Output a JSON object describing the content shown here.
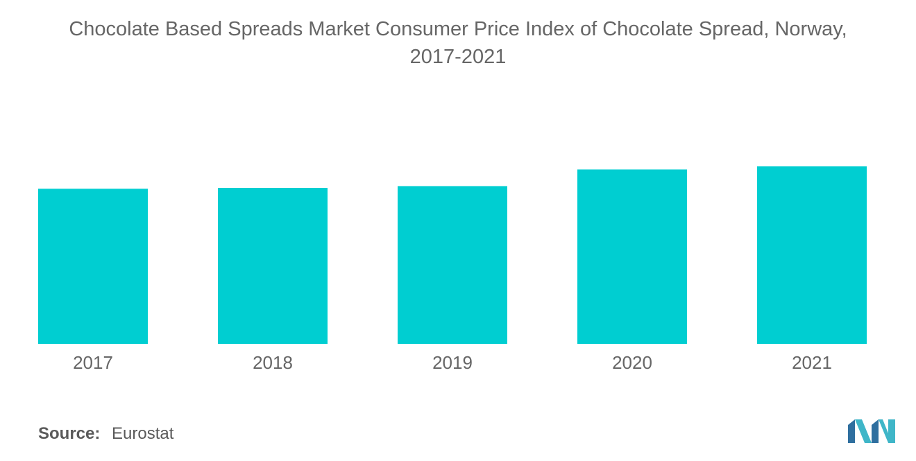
{
  "title_line1": "Chocolate Based Spreads Market Consumer Price Index of Chocolate Spread, Norway,",
  "title_line2": "2017-2021",
  "source": {
    "label": "Source:",
    "value": "Eurostat"
  },
  "colors": {
    "bar": "#00CED1",
    "text": "#666666"
  },
  "chart_data": {
    "type": "bar",
    "title": "Chocolate Based Spreads Market Consumer Price Index of Chocolate Spread, Norway, 2017-2021",
    "categories": [
      "2017",
      "2018",
      "2019",
      "2020",
      "2021"
    ],
    "values": [
      105.4,
      106.0,
      107.2,
      118.5,
      120.6
    ],
    "ylim": [
      0,
      120.6
    ],
    "grid": false,
    "legend": "none"
  }
}
